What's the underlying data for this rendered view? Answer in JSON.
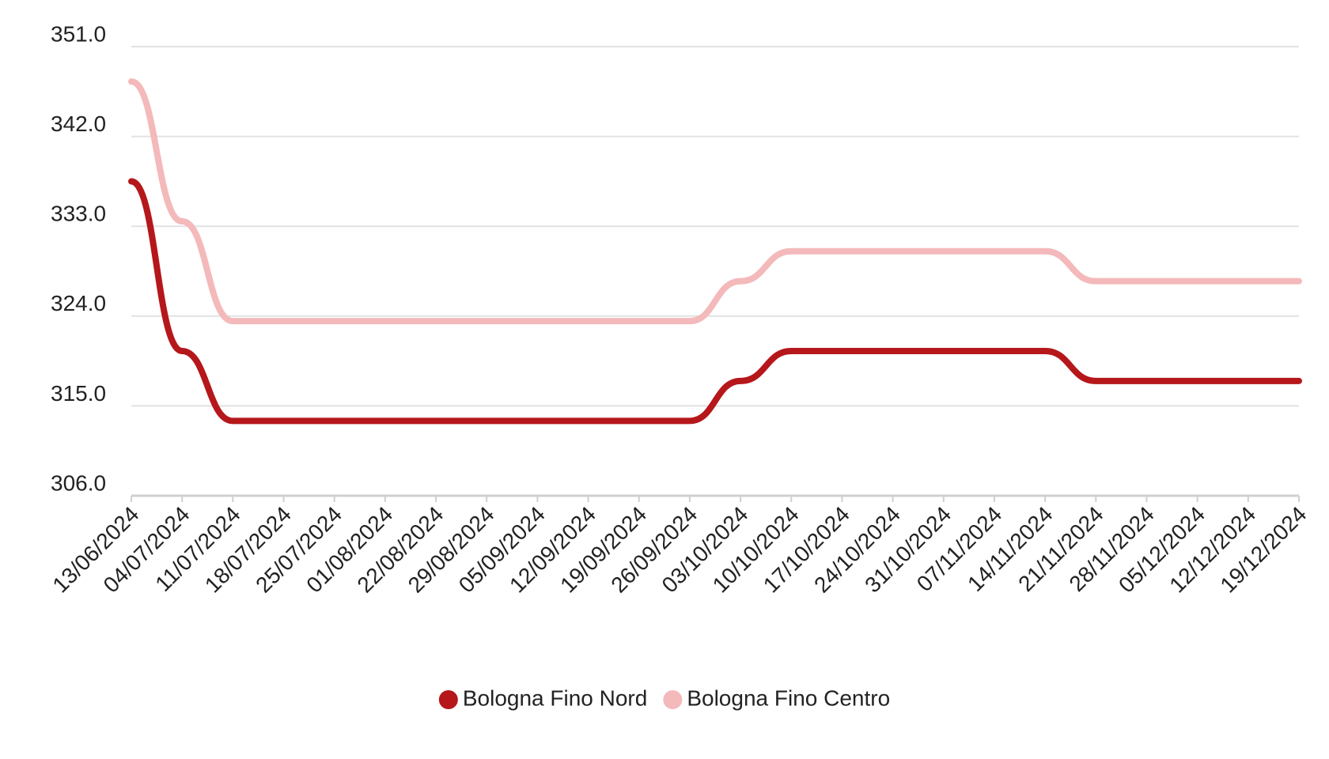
{
  "chart_data": {
    "type": "line",
    "categories": [
      "13/06/2024",
      "04/07/2024",
      "11/07/2024",
      "18/07/2024",
      "25/07/2024",
      "01/08/2024",
      "22/08/2024",
      "29/08/2024",
      "05/09/2024",
      "12/09/2024",
      "19/09/2024",
      "26/09/2024",
      "03/10/2024",
      "10/10/2024",
      "17/10/2024",
      "24/10/2024",
      "31/10/2024",
      "07/11/2024",
      "14/11/2024",
      "21/11/2024",
      "28/11/2024",
      "05/12/2024",
      "12/12/2024",
      "19/12/2024"
    ],
    "series": [
      {
        "name": "Bologna Fino Nord",
        "color": "#b5171b",
        "values": [
          337.5,
          320.5,
          313.5,
          313.5,
          313.5,
          313.5,
          313.5,
          313.5,
          313.5,
          313.5,
          313.5,
          313.5,
          317.5,
          320.5,
          320.5,
          320.5,
          320.5,
          320.5,
          320.5,
          317.5,
          317.5,
          317.5,
          317.5,
          317.5
        ]
      },
      {
        "name": "Bologna Fino Centro",
        "color": "#f4b9ba",
        "values": [
          347.5,
          333.5,
          323.5,
          323.5,
          323.5,
          323.5,
          323.5,
          323.5,
          323.5,
          323.5,
          323.5,
          323.5,
          327.5,
          330.5,
          330.5,
          330.5,
          330.5,
          330.5,
          330.5,
          327.5,
          327.5,
          327.5,
          327.5,
          327.5
        ]
      }
    ],
    "ylim": [
      306,
      351
    ],
    "yticks": [
      {
        "value": 306,
        "label": "306.0"
      },
      {
        "value": 315,
        "label": "315.0"
      },
      {
        "value": 324,
        "label": "324.0"
      },
      {
        "value": 333,
        "label": "333.0"
      },
      {
        "value": 342,
        "label": "342.0"
      },
      {
        "value": 351,
        "label": "351.0"
      }
    ],
    "grid": true
  }
}
